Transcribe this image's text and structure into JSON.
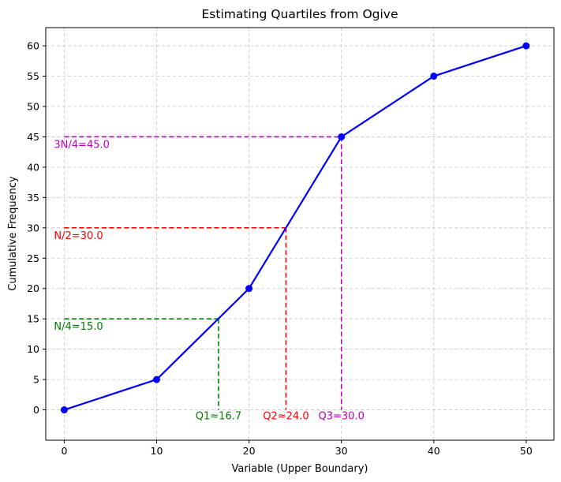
{
  "chart_data": {
    "type": "line",
    "title": "Estimating Quartiles from Ogive",
    "xlabel": "Variable (Upper Boundary)",
    "ylabel": "Cumulative Frequency",
    "xlim": [
      -2,
      53
    ],
    "ylim": [
      -5,
      63
    ],
    "xticks": [
      0,
      10,
      20,
      30,
      40,
      50
    ],
    "yticks": [
      0,
      5,
      10,
      15,
      20,
      25,
      30,
      35,
      40,
      45,
      50,
      55,
      60
    ],
    "grid": true,
    "series": [
      {
        "x": [
          0,
          10,
          20,
          30,
          40,
          50
        ],
        "y": [
          0,
          5,
          20,
          45,
          55,
          60
        ],
        "color": "#0000ff",
        "marker": "circle"
      }
    ],
    "quartiles": [
      {
        "n_label": "N/4=15.0",
        "q_label": "Q1≈16.7",
        "y": 15,
        "x": 16.7,
        "color": "#008000"
      },
      {
        "n_label": "N/2=30.0",
        "q_label": "Q2≈24.0",
        "y": 30,
        "x": 24.0,
        "color": "#ff0000"
      },
      {
        "n_label": "3N/4=45.0",
        "q_label": "Q3=30.0",
        "y": 45,
        "x": 30.0,
        "color": "#bf00bf"
      }
    ]
  }
}
